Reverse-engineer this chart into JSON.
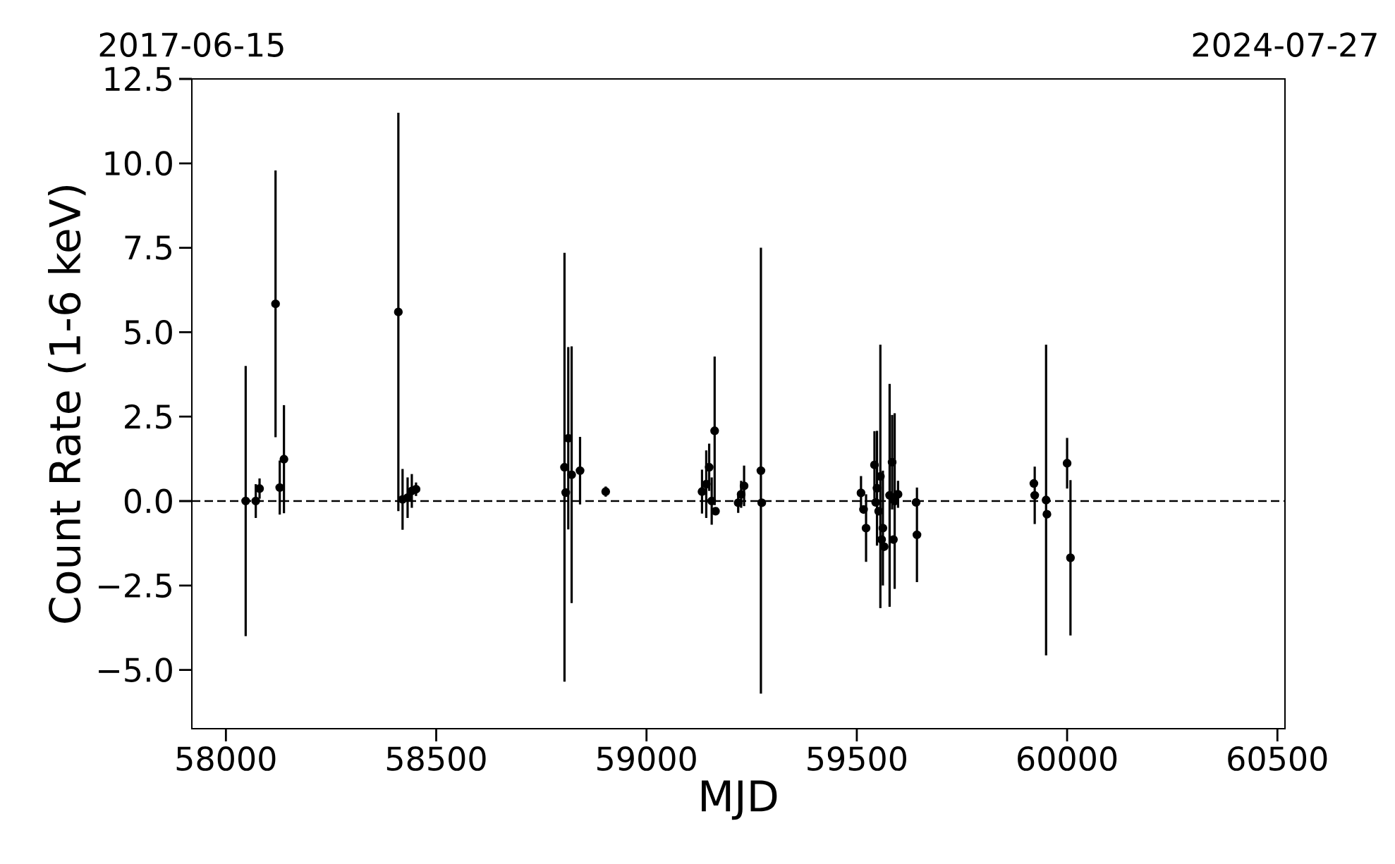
{
  "chart_data": {
    "type": "scatter",
    "xlabel": "MJD",
    "ylabel": "Count Rate (1-6 keV)",
    "xlim": [
      57919,
      60518
    ],
    "ylim": [
      -6.74,
      12.5
    ],
    "xticks": [
      58000,
      58500,
      59000,
      59500,
      60000,
      60500
    ],
    "yticks": [
      {
        "value": -5,
        "label": "−5.0"
      },
      {
        "value": -2.5,
        "label": "−2.5"
      },
      {
        "value": 0,
        "label": "0.0"
      },
      {
        "value": 2.5,
        "label": "2.5"
      },
      {
        "value": 5,
        "label": "5.0"
      },
      {
        "value": 7.5,
        "label": "7.5"
      },
      {
        "value": 10,
        "label": "10.0"
      },
      {
        "value": 12.5,
        "label": "12.5"
      }
    ],
    "x2lim": [
      "2017-06-15",
      "2024-07-27"
    ],
    "x2ticks": [
      "2017-06-15",
      "2024-07-27"
    ],
    "ref_lines": [
      {
        "axis": "y",
        "value": 0,
        "color": "#000000",
        "line_style": "dashed"
      }
    ],
    "marker": "circle",
    "series": [
      {
        "color": "#000000",
        "x": [
          58047,
          58071,
          58080,
          58118,
          58128,
          58138,
          58410,
          58420,
          58432,
          58442,
          58452,
          58805,
          58808,
          58814,
          58822,
          58842,
          58903,
          59132,
          59142,
          59149,
          59155,
          59162,
          59164,
          59218,
          59225,
          59232,
          59272,
          59274,
          59510,
          59516,
          59522,
          59542,
          59545,
          59548,
          59552,
          59562,
          59556,
          59559,
          59565,
          59578,
          59584,
          59590,
          59587,
          59598,
          59641,
          59643,
          59921,
          59923,
          59950,
          59952,
          60000,
          60008
        ],
        "values": [
          0,
          0,
          0.37,
          5.84,
          0.4,
          1.24,
          5.6,
          0.05,
          0.1,
          0.3,
          0.35,
          1.0,
          0.25,
          1.86,
          0.78,
          0.9,
          0.28,
          0.28,
          0.5,
          1.0,
          0.0,
          2.08,
          -0.3,
          -0.05,
          0.2,
          0.45,
          0.9,
          -0.05,
          0.24,
          -0.25,
          -0.8,
          1.07,
          -0.04,
          0.38,
          -0.3,
          -0.8,
          0.73,
          -1.14,
          -1.35,
          0.17,
          1.15,
          0,
          -1.14,
          0.2,
          -0.04,
          -1.0,
          0.52,
          0.17,
          0.03,
          -0.39,
          1.12,
          -1.68
        ],
        "errors": [
          4,
          0.5,
          0.3,
          3.95,
          0.8,
          1.6,
          5.9,
          0.9,
          0.6,
          0.5,
          0.2,
          6.35,
          null,
          2.7,
          3.8,
          1.0,
          0.15,
          0.65,
          1.0,
          0.7,
          0.7,
          2.2,
          null,
          0.3,
          0.4,
          0.6,
          6.6,
          null,
          0.5,
          null,
          1.0,
          1.0,
          null,
          1.7,
          null,
          1.7,
          3.9,
          null,
          null,
          3.3,
          1.4,
          2.6,
          null,
          0.4,
          null,
          1.4,
          null,
          0.85,
          4.6,
          null,
          0.75,
          2.3
        ]
      }
    ]
  }
}
